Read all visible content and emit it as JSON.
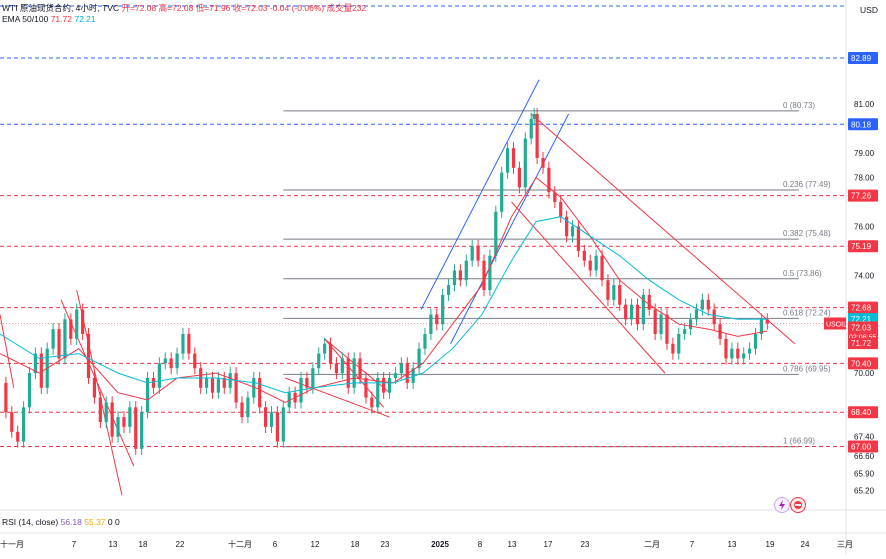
{
  "header": {
    "line1_prefix": "WTI 原油现货合约, 4小时, TVC",
    "line1_values": "开=72.08  高=72.08  低=71.96  收=72.03  -0.04 (-0.06%)  成交量232",
    "ema_label": "EMA 50/100",
    "ema_value_1": "71.72",
    "ema_value_2": "72.21",
    "currency": "USD"
  },
  "rsi": {
    "label": "RSI (14, close)",
    "value_1": "56.18",
    "value_2": "55.37",
    "value_3": "0",
    "value_4": "0"
  },
  "icons": [
    "lightning-icon",
    "flag-icon"
  ],
  "colors": {
    "bull": "#22ab94",
    "bear": "#f23645",
    "ema_fast": "#f23645",
    "ema_slow": "#00bcd4",
    "channel_blue": "#2962ff",
    "hline_blue": "#2962ff",
    "fib_grey": "#787b86"
  },
  "chart_data": {
    "type": "candlestick",
    "symbol": "USOIL",
    "ylim": [
      64.4,
      84.2
    ],
    "y_ticks": [
      "81.00",
      "80.18",
      "79.00",
      "78.00",
      "77.26",
      "76.00",
      "75.19",
      "74.00",
      "72.68",
      "72.21",
      "72.03",
      "71.72",
      "70.40",
      "70.00",
      "68.40",
      "67.40",
      "67.00",
      "66.60",
      "65.90",
      "65.20",
      "82.89"
    ],
    "axis_price_ticks": [
      81.0,
      79.0,
      78.0,
      76.0,
      74.0,
      70.0,
      67.4,
      66.6,
      65.9,
      65.2
    ],
    "x_ticks": [
      "十一月",
      "7",
      "13",
      "18",
      "22",
      "十二月",
      "6",
      "12",
      "18",
      "23",
      "2025",
      "8",
      "13",
      "17",
      "23",
      "二月",
      "7",
      "13",
      "19",
      "24",
      "三月"
    ],
    "fib_levels": [
      {
        "label": "0 (80.73)",
        "value": 80.73
      },
      {
        "label": "0.236 (77.49)",
        "value": 77.49
      },
      {
        "label": "0.382 (75.48)",
        "value": 75.48
      },
      {
        "label": "0.5 (73.86)",
        "value": 73.86
      },
      {
        "label": "0.618 (72.24)",
        "value": 72.24
      },
      {
        "label": "0.786 (69.95)",
        "value": 69.95
      },
      {
        "label": "1 (66.99)",
        "value": 66.99
      }
    ],
    "horizontal_levels": [
      {
        "value": 82.89,
        "label": "82.89",
        "color": "#2962ff",
        "style": "dashed"
      },
      {
        "value": 80.18,
        "label": "80.18",
        "color": "#2962ff",
        "style": "dashed"
      },
      {
        "value": 77.26,
        "label": "77.26",
        "color": "#f23645",
        "style": "dashed"
      },
      {
        "value": 75.19,
        "label": "75.19",
        "color": "#f23645",
        "style": "dashed"
      },
      {
        "value": 72.68,
        "label": "72.68",
        "color": "#f23645",
        "style": "dashed"
      },
      {
        "value": 70.4,
        "label": "70.40",
        "color": "#f23645",
        "style": "dashed"
      },
      {
        "value": 68.4,
        "label": "68.40",
        "color": "#f23645",
        "style": "dashed"
      },
      {
        "value": 67.0,
        "label": "67.00",
        "color": "#f23645",
        "style": "dashed"
      }
    ],
    "price_badges": [
      {
        "label": "USOIL",
        "value": "72.03",
        "sub": "02:06:55",
        "color": "#f23645"
      },
      {
        "label": "",
        "value": "72.21",
        "color": "#00bcd4"
      },
      {
        "label": "",
        "value": "71.72",
        "color": "#f23645"
      }
    ],
    "close_price": [
      [
        0,
        69.6
      ],
      [
        6,
        68.4
      ],
      [
        12,
        67.6
      ],
      [
        18,
        67.2
      ],
      [
        24,
        68.6
      ],
      [
        30,
        70.0
      ],
      [
        36,
        70.8
      ],
      [
        42,
        69.4
      ],
      [
        48,
        71.0
      ],
      [
        54,
        71.8
      ],
      [
        60,
        70.6
      ],
      [
        66,
        72.2
      ],
      [
        72,
        71.4
      ],
      [
        78,
        72.6
      ],
      [
        84,
        71.6
      ],
      [
        90,
        69.8
      ],
      [
        96,
        69.0
      ],
      [
        102,
        68.0
      ],
      [
        108,
        68.8
      ],
      [
        114,
        67.4
      ],
      [
        120,
        68.2
      ],
      [
        126,
        67.8
      ],
      [
        132,
        68.6
      ],
      [
        138,
        66.9
      ],
      [
        144,
        68.4
      ],
      [
        150,
        69.8
      ],
      [
        156,
        69.4
      ],
      [
        162,
        70.4
      ],
      [
        168,
        70.6
      ],
      [
        174,
        70.2
      ],
      [
        180,
        70.8
      ],
      [
        186,
        71.6
      ],
      [
        192,
        70.8
      ],
      [
        198,
        70.2
      ],
      [
        204,
        69.4
      ],
      [
        210,
        69.8
      ],
      [
        216,
        69.2
      ],
      [
        222,
        69.8
      ],
      [
        228,
        69.4
      ],
      [
        234,
        70.0
      ],
      [
        240,
        68.8
      ],
      [
        246,
        68.2
      ],
      [
        252,
        69.0
      ],
      [
        258,
        69.8
      ],
      [
        264,
        68.6
      ],
      [
        270,
        67.8
      ],
      [
        276,
        68.4
      ],
      [
        282,
        67.2
      ],
      [
        288,
        68.6
      ],
      [
        294,
        69.2
      ],
      [
        300,
        68.8
      ],
      [
        306,
        69.8
      ],
      [
        312,
        69.4
      ],
      [
        318,
        70.2
      ],
      [
        324,
        70.8
      ],
      [
        330,
        71.2
      ],
      [
        336,
        70.4
      ],
      [
        342,
        70.0
      ],
      [
        348,
        70.6
      ],
      [
        354,
        69.4
      ],
      [
        360,
        70.6
      ],
      [
        366,
        69.8
      ],
      [
        372,
        69.0
      ],
      [
        378,
        68.6
      ],
      [
        384,
        69.8
      ],
      [
        390,
        69.2
      ],
      [
        396,
        69.8
      ],
      [
        402,
        70.0
      ],
      [
        408,
        70.4
      ],
      [
        414,
        69.6
      ],
      [
        420,
        70.2
      ],
      [
        426,
        71.0
      ],
      [
        432,
        71.6
      ],
      [
        438,
        72.4
      ],
      [
        444,
        72.0
      ],
      [
        450,
        73.2
      ],
      [
        456,
        73.6
      ],
      [
        462,
        74.2
      ],
      [
        468,
        73.8
      ],
      [
        474,
        74.6
      ],
      [
        480,
        75.2
      ],
      [
        486,
        74.6
      ],
      [
        492,
        73.4
      ],
      [
        498,
        74.8
      ],
      [
        504,
        76.6
      ],
      [
        510,
        78.2
      ],
      [
        516,
        79.2
      ],
      [
        522,
        78.4
      ],
      [
        528,
        77.6
      ],
      [
        534,
        79.6
      ],
      [
        540,
        80.4
      ],
      [
        543,
        80.6
      ],
      [
        546,
        78.8
      ],
      [
        552,
        78.4
      ],
      [
        558,
        77.4
      ],
      [
        564,
        77.0
      ],
      [
        570,
        76.4
      ],
      [
        576,
        75.6
      ],
      [
        582,
        76.0
      ],
      [
        588,
        75.0
      ],
      [
        594,
        74.6
      ],
      [
        600,
        74.2
      ],
      [
        606,
        74.8
      ],
      [
        612,
        73.8
      ],
      [
        618,
        73.0
      ],
      [
        624,
        73.6
      ],
      [
        630,
        72.8
      ],
      [
        636,
        72.2
      ],
      [
        642,
        72.8
      ],
      [
        648,
        72.0
      ],
      [
        654,
        73.2
      ],
      [
        660,
        72.6
      ],
      [
        666,
        71.6
      ],
      [
        672,
        72.4
      ],
      [
        678,
        71.2
      ],
      [
        684,
        70.8
      ],
      [
        690,
        71.6
      ],
      [
        696,
        71.8
      ],
      [
        702,
        72.2
      ],
      [
        708,
        72.6
      ],
      [
        714,
        73.0
      ],
      [
        720,
        72.6
      ],
      [
        726,
        72.0
      ],
      [
        732,
        71.4
      ],
      [
        738,
        70.6
      ],
      [
        744,
        71.0
      ],
      [
        750,
        70.6
      ],
      [
        756,
        70.8
      ],
      [
        762,
        71.0
      ],
      [
        768,
        71.6
      ],
      [
        774,
        72.2
      ],
      [
        780,
        72.03
      ]
    ],
    "ema_fast": [
      [
        0,
        70.8
      ],
      [
        40,
        70.0
      ],
      [
        80,
        71.0
      ],
      [
        120,
        69.2
      ],
      [
        150,
        68.9
      ],
      [
        180,
        69.8
      ],
      [
        220,
        70.0
      ],
      [
        260,
        69.4
      ],
      [
        290,
        68.8
      ],
      [
        320,
        69.4
      ],
      [
        360,
        69.8
      ],
      [
        400,
        69.6
      ],
      [
        430,
        70.4
      ],
      [
        460,
        72.0
      ],
      [
        490,
        73.6
      ],
      [
        520,
        76.4
      ],
      [
        545,
        78.0
      ],
      [
        570,
        77.2
      ],
      [
        600,
        75.6
      ],
      [
        630,
        73.8
      ],
      [
        660,
        72.8
      ],
      [
        690,
        72.0
      ],
      [
        720,
        71.8
      ],
      [
        750,
        71.5
      ],
      [
        780,
        71.72
      ]
    ],
    "ema_slow": [
      [
        0,
        71.6
      ],
      [
        40,
        70.6
      ],
      [
        80,
        70.8
      ],
      [
        120,
        70.0
      ],
      [
        150,
        69.6
      ],
      [
        180,
        69.8
      ],
      [
        220,
        69.8
      ],
      [
        260,
        69.6
      ],
      [
        290,
        69.2
      ],
      [
        320,
        69.4
      ],
      [
        360,
        69.6
      ],
      [
        400,
        69.6
      ],
      [
        430,
        70.0
      ],
      [
        460,
        71.0
      ],
      [
        490,
        72.4
      ],
      [
        520,
        74.6
      ],
      [
        545,
        76.2
      ],
      [
        570,
        76.4
      ],
      [
        600,
        75.6
      ],
      [
        630,
        74.8
      ],
      [
        660,
        73.8
      ],
      [
        690,
        73.0
      ],
      [
        720,
        72.4
      ],
      [
        750,
        72.2
      ],
      [
        780,
        72.21
      ]
    ],
    "rsi_value": 56.18,
    "rsi_ma": 55.37
  }
}
